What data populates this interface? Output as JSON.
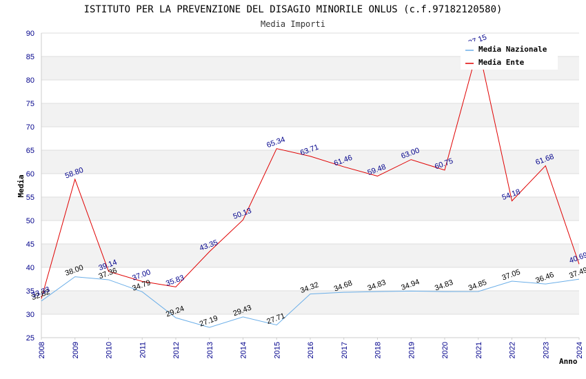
{
  "chart_data": {
    "type": "line",
    "title": "ISTITUTO PER LA PREVENZIONE DEL DISAGIO MINORILE ONLUS (c.f.97182120580)",
    "subtitle": "Media Importi",
    "xlabel": "Anno",
    "ylabel": "Media",
    "ylim": [
      25,
      90
    ],
    "ytick_step": 5,
    "grid": true,
    "legend_position": "top-right",
    "x": [
      "2008",
      "2009",
      "2010",
      "2011",
      "2012",
      "2013",
      "2014",
      "2015",
      "2016",
      "2017",
      "2018",
      "2019",
      "2020",
      "2021",
      "2022",
      "2023",
      "2024"
    ],
    "series": [
      {
        "name": "Media Nazionale",
        "color": "#6aaee8",
        "label_color": "#000000",
        "values": [
          32.82,
          38.0,
          37.36,
          34.79,
          29.24,
          27.19,
          29.43,
          27.71,
          34.32,
          34.68,
          34.83,
          34.94,
          34.83,
          34.85,
          37.05,
          36.46,
          37.49
        ],
        "labels": [
          "32.82",
          "38.00",
          "37.36",
          "34.79",
          "29.24",
          "27.19",
          "29.43",
          "27.71",
          "34.32",
          "34.68",
          "34.83",
          "34.94",
          "34.83",
          "34.85",
          "37.05",
          "36.46",
          "37.49"
        ]
      },
      {
        "name": "Media Ente",
        "color": "#e00000",
        "label_color": "#00008b",
        "values": [
          33.33,
          58.8,
          39.14,
          37.0,
          35.83,
          43.35,
          50.13,
          65.34,
          63.71,
          61.46,
          59.48,
          63.0,
          60.75,
          87.15,
          54.18,
          61.68,
          40.69
        ],
        "labels": [
          "33.33",
          "58.80",
          "39.14",
          "37.00",
          "35.83",
          "43.35",
          "50.13",
          "65.34",
          "63.71",
          "61.46",
          "59.48",
          "63.00",
          "60.75",
          "87.15",
          "54.18",
          "61.68",
          "40.69"
        ]
      }
    ]
  }
}
